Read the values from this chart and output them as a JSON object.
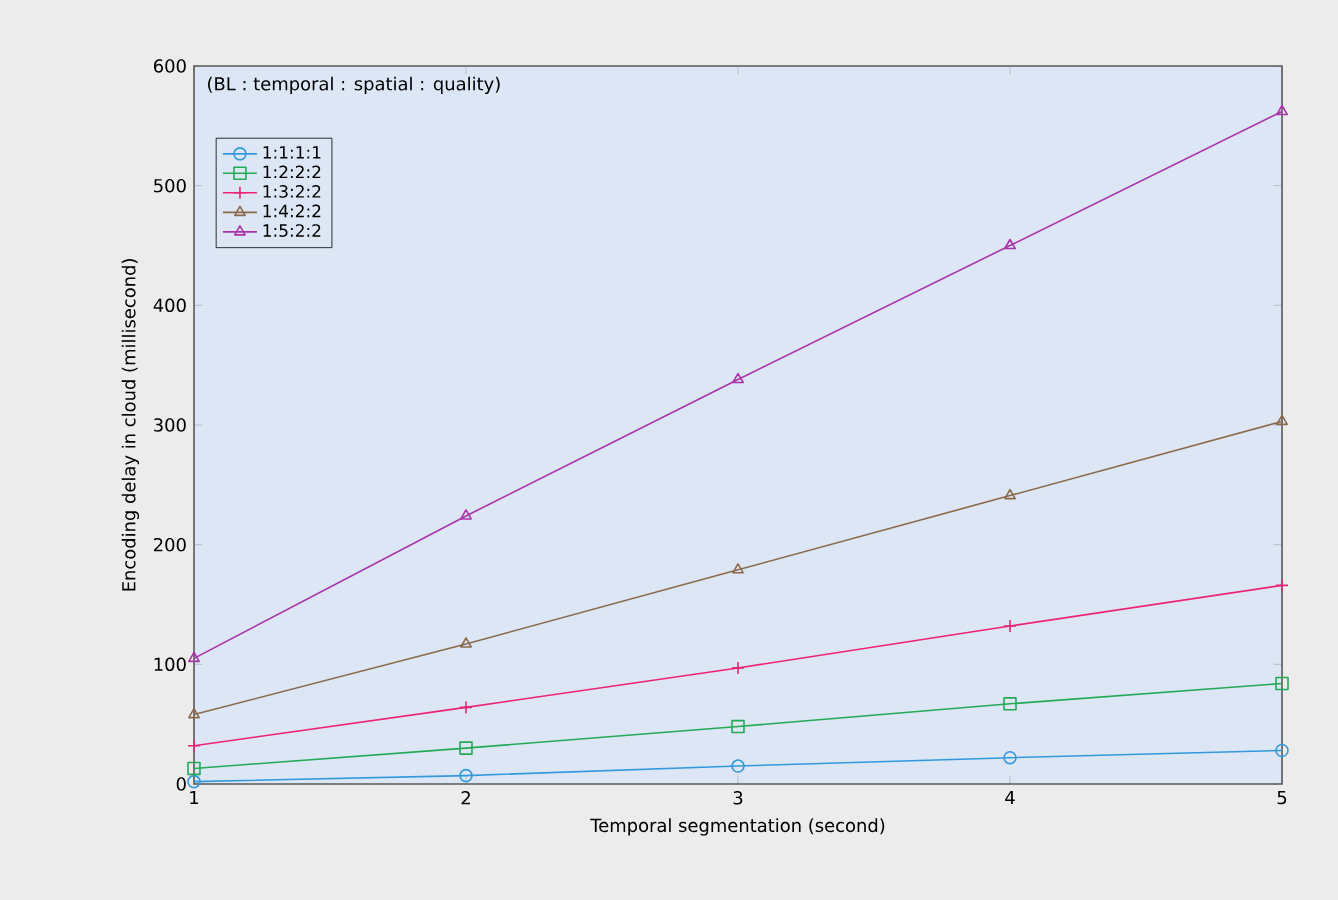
{
  "chart_data": {
    "type": "line",
    "xlabel": "Temporal segmentation (second)",
    "ylabel": "Encoding delay in cloud (millisecond)",
    "legend_title": "(BL : temporal : spatial : quality)",
    "legend": "top left",
    "grid": false,
    "x": [
      1,
      2,
      3,
      4,
      5
    ],
    "xlim": [
      1,
      5
    ],
    "xticks": [
      1,
      2,
      3,
      4,
      5
    ],
    "ylim": [
      0,
      600
    ],
    "yticks": [
      0,
      100,
      200,
      300,
      400,
      500,
      600
    ],
    "series": [
      {
        "name": "1:1:1:1",
        "color": "#3399dd",
        "marker": "circle",
        "values": [
          2,
          7,
          15,
          22,
          28
        ]
      },
      {
        "name": "1:2:2:2",
        "color": "#22aa55",
        "marker": "square",
        "values": [
          13,
          30,
          48,
          67,
          84
        ]
      },
      {
        "name": "1:3:2:2",
        "color": "#ee2277",
        "marker": "cross",
        "values": [
          32,
          64,
          97,
          132,
          166
        ]
      },
      {
        "name": "1:4:2:2",
        "color": "#8b6a4a",
        "marker": "triangle",
        "values": [
          58,
          117,
          179,
          241,
          303
        ]
      },
      {
        "name": "1:5:2:2",
        "color": "#aa33aa",
        "marker": "triangle",
        "values": [
          105,
          224,
          338,
          450,
          562
        ]
      }
    ]
  }
}
